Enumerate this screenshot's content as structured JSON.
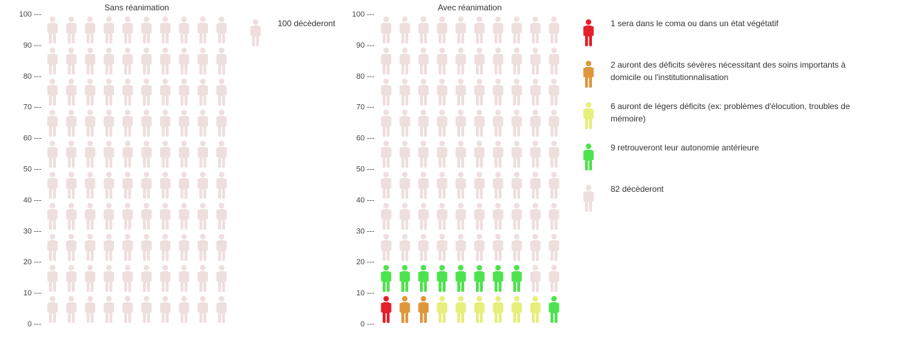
{
  "chart_data": [
    {
      "type": "pictograph",
      "title": "Sans réanimation",
      "yticks": [
        "100 ---",
        "90 ---",
        "80 ---",
        "70 ---",
        "60 ---",
        "50 ---",
        "40 ---",
        "30 ---",
        "20 ---",
        "10 ---",
        "0 ---"
      ],
      "ylim": [
        0,
        100
      ],
      "columns": 10,
      "rows": 10,
      "fill_from": "bottom-left",
      "categories": [
        {
          "label": "100 décèderont",
          "count": 100,
          "color": "#efdede"
        }
      ],
      "legend_placement": "right"
    },
    {
      "type": "pictograph",
      "title": "Avec réanimation",
      "yticks": [
        "100 ---",
        "90 ---",
        "80 ---",
        "70 ---",
        "60 ---",
        "50 ---",
        "40 ---",
        "30 ---",
        "20 ---",
        "10 ---",
        "0 ---"
      ],
      "ylim": [
        0,
        100
      ],
      "columns": 10,
      "rows": 10,
      "fill_from": "bottom-left",
      "categories": [
        {
          "label": "1 sera dans le coma ou dans un état végétatif",
          "count": 1,
          "color": "#e3202b"
        },
        {
          "label": "2 auront des déficits sévères nécessitant des soins importants à domicile ou l'institutionnalisation",
          "count": 2,
          "color": "#df973c"
        },
        {
          "label": "6 auront de légers déficits (ex: problèmes d'élocution, troubles de mémoire)",
          "count": 6,
          "color": "#e6ef7a"
        },
        {
          "label": "9 retrouveront leur autonomie antérieure",
          "count": 9,
          "color": "#4ee34e"
        },
        {
          "label": "82 décèderont",
          "count": 82,
          "color": "#efdede"
        }
      ],
      "legend_placement": "right"
    }
  ]
}
